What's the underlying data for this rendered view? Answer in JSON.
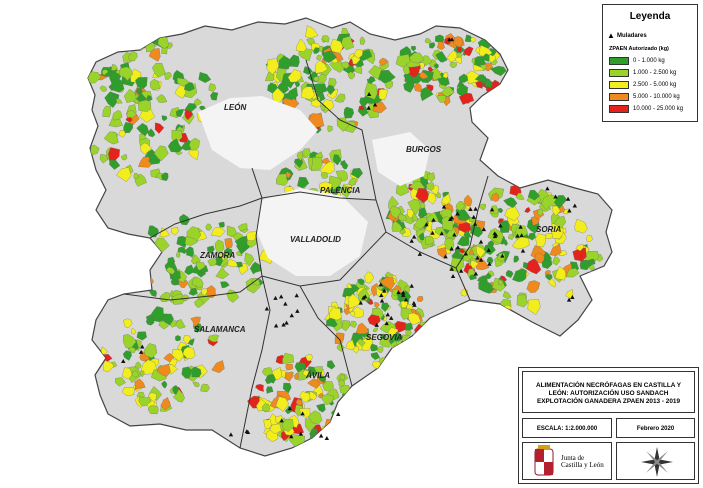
{
  "legend": {
    "title": "Leyenda",
    "muladares_label": "Muladares",
    "subtitle": "ZPAEN Autorizado (kg)",
    "classes": [
      {
        "label": "0 - 1.000 kg",
        "color": "#2f9e2b"
      },
      {
        "label": "1.000 - 2.500 kg",
        "color": "#9ad42a"
      },
      {
        "label": "2.500 - 5.000 kg",
        "color": "#f2ee1e"
      },
      {
        "label": "5.000 - 10.000 kg",
        "color": "#ef8a1f"
      },
      {
        "label": "10.000 - 25.000 kg",
        "color": "#e3241d"
      }
    ]
  },
  "provinces": [
    "LEÓN",
    "BURGOS",
    "PALENCIA",
    "SORIA",
    "ZAMORA",
    "VALLADOLID",
    "SALAMANCA",
    "SEGOVIA",
    "ÁVILA"
  ],
  "cartouche": {
    "title": "ALIMENTACIÓN NECRÓFAGAS EN CASTILLA Y LEÓN: AUTORIZACIÓN USO SANDACH EXPLOTACIÓN GANADERA ZPAEN 2013 - 2019",
    "scale": "ESCALA: 1:2.000.000",
    "date": "Febrero 2020",
    "logo_line1": "Junta de",
    "logo_line2": "Castilla y León"
  },
  "colors": {
    "no_data": "#d9d9d9",
    "urban": "#ffffff",
    "border": "#555555"
  }
}
